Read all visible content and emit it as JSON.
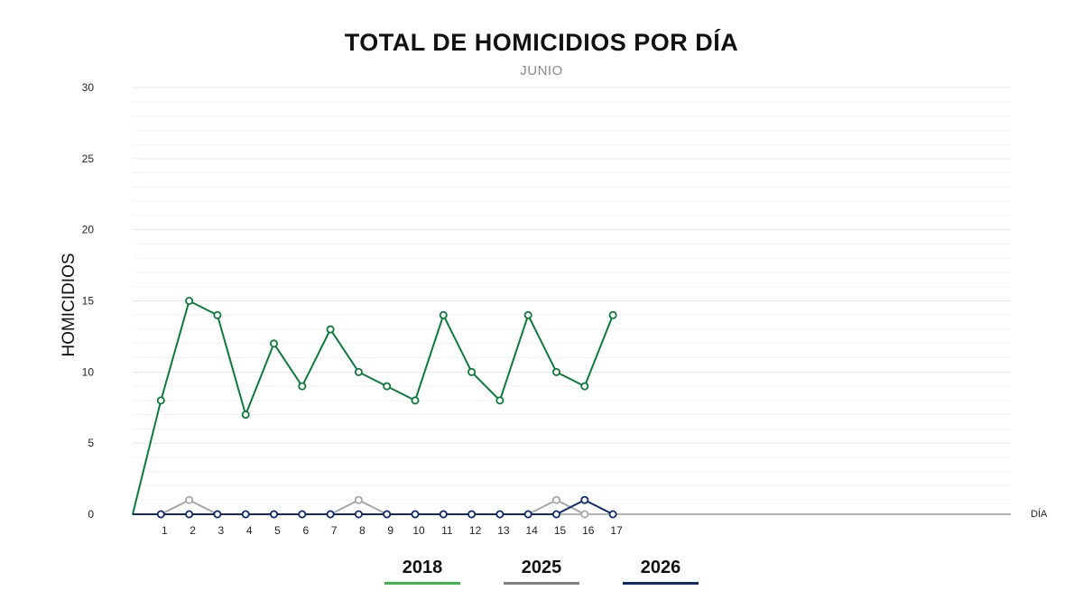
{
  "chart_data": {
    "type": "line",
    "title": "TOTAL DE HOMICIDIOS POR DÍA",
    "subtitle": "JUNIO",
    "xlabel": "DÍA",
    "ylabel": "HOMICIDIOS",
    "ylim": [
      0,
      30
    ],
    "yticks": [
      0,
      5,
      10,
      15,
      20,
      25,
      30
    ],
    "xlim": [
      0,
      31
    ],
    "x": [
      1,
      2,
      3,
      4,
      5,
      6,
      7,
      8,
      9,
      10,
      11,
      12,
      13,
      14,
      15,
      16,
      17
    ],
    "grid": true,
    "legend_position": "bottom",
    "series": [
      {
        "name": "2018",
        "color": "#0b7a3b",
        "legend_color": "#3cb84a",
        "x": [
          0,
          1,
          2,
          3,
          4,
          5,
          6,
          7,
          8,
          9,
          10,
          11,
          12,
          13,
          14,
          15,
          16,
          17
        ],
        "values": [
          0,
          8,
          15,
          14,
          7,
          12,
          9,
          13,
          10,
          9,
          8,
          14,
          10,
          8,
          14,
          10,
          9,
          14
        ]
      },
      {
        "name": "2025",
        "color": "#a6a6a6",
        "legend_color": "#808080",
        "x": [
          0,
          1,
          2,
          3,
          4,
          5,
          6,
          7,
          8,
          9,
          10,
          11,
          12,
          13,
          14,
          15,
          16
        ],
        "values": [
          0,
          0,
          1,
          0,
          0,
          0,
          0,
          0,
          1,
          0,
          0,
          0,
          0,
          0,
          0,
          1,
          0
        ]
      },
      {
        "name": "2026",
        "color": "#0d2a6b",
        "legend_color": "#0d2a6b",
        "x": [
          0,
          1,
          2,
          3,
          4,
          5,
          6,
          7,
          8,
          9,
          10,
          11,
          12,
          13,
          14,
          15,
          16,
          17
        ],
        "values": [
          0,
          0,
          0,
          0,
          0,
          0,
          0,
          0,
          0,
          0,
          0,
          0,
          0,
          0,
          0,
          0,
          1,
          0
        ]
      }
    ]
  }
}
